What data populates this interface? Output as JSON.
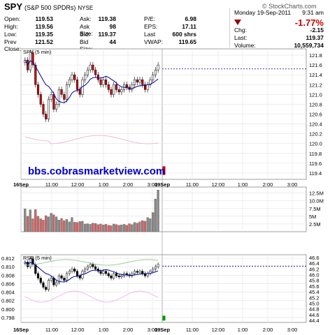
{
  "header": {
    "symbol": "SPY",
    "name": "(S&P 500 SPDRs)",
    "exchange": "NYSE",
    "brand": "© StockCharts.com",
    "date": "Monday 19-Sep-2011",
    "time": "9:31 am",
    "change_pct": "-1.77%",
    "quote_rows": [
      [
        {
          "label": "Open:",
          "value": "119.53"
        },
        {
          "label": "Ask:",
          "value": "119.38"
        },
        {
          "label": "P/E:",
          "value": "6.98"
        }
      ],
      [
        {
          "label": "High:",
          "value": "119.56"
        },
        {
          "label": "Ask Size:",
          "value": "98"
        },
        {
          "label": "EPS:",
          "value": "17.11"
        }
      ],
      [
        {
          "label": "Low:",
          "value": "119.35"
        },
        {
          "label": "Bid:",
          "value": "119.37"
        },
        {
          "label": "Last",
          "value": "600 shrs"
        }
      ],
      [
        {
          "label": "Prev Close:",
          "value": "121.52"
        },
        {
          "label": "Bid Size:",
          "value": "44"
        },
        {
          "label": "VWAP:",
          "value": "119.65"
        }
      ]
    ],
    "right_rows": [
      {
        "label": "Chg:",
        "value": "-2.15"
      },
      {
        "label": "Last:",
        "value": "119.37"
      },
      {
        "label": "Volume:",
        "value": "10,559,734"
      }
    ],
    "colors": {
      "down": "#cc0000",
      "up": "#000000",
      "accent": "#000099"
    }
  },
  "watermark": "bbs.cobrasmarketview.com",
  "chart_data": [
    {
      "type": "candlestick",
      "title": "SPY (5 min)",
      "y_ticks": [
        "121.8",
        "121.6",
        "121.4",
        "121.2",
        "121.0",
        "120.8",
        "120.6",
        "120.4",
        "120.2",
        "120.0",
        "119.8",
        "119.6",
        "119.4"
      ],
      "y_tick_values": [
        121.8,
        121.6,
        121.4,
        121.2,
        121.0,
        120.8,
        120.6,
        120.4,
        120.2,
        120.0,
        119.8,
        119.6,
        119.4
      ],
      "ylim": [
        119.3,
        121.9
      ],
      "x_ticks": [
        "16Sep",
        "11:00",
        "12:00",
        "1:00",
        "2:00",
        "3:00",
        "19Sep",
        "11:00",
        "12:00",
        "1:00",
        "2:00",
        "3:00"
      ],
      "prev_close": 121.52,
      "closes": [
        121.7,
        121.5,
        121.85,
        121.6,
        121.2,
        121.0,
        120.8,
        120.6,
        120.5,
        120.9,
        121.0,
        120.7,
        120.8,
        121.1,
        121.0,
        120.9,
        121.2,
        121.3,
        121.4,
        121.3,
        121.1,
        121.0,
        121.3,
        121.4,
        121.5,
        121.6,
        121.5,
        121.4,
        121.3,
        121.2,
        121.3,
        121.2,
        121.1,
        121.0,
        121.2,
        121.1,
        121.05,
        121.1,
        121.2,
        121.15,
        121.1,
        121.2,
        121.3,
        121.25,
        121.3,
        121.2,
        121.1,
        121.2,
        121.3,
        121.4,
        121.5,
        121.6
      ],
      "last_bar": {
        "open": 119.53,
        "high": 119.56,
        "low": 119.35,
        "close": 119.37
      }
    },
    {
      "type": "bar",
      "title": "Volume",
      "y_ticks": [
        "12.5M",
        "10.0M",
        "7.5M",
        "5M",
        "2.5M"
      ],
      "y_tick_values": [
        12.5,
        10.0,
        7.5,
        5,
        2.5
      ],
      "ylim": [
        0,
        14
      ],
      "values": [
        7.4,
        5.0,
        7.1,
        4.2,
        7.2,
        5.0,
        4.2,
        3.8,
        5.2,
        4.8,
        6.0,
        5.5,
        4.8,
        3.8,
        4.3,
        3.6,
        4.0,
        3.2,
        4.6,
        3.1,
        3.0,
        3.3,
        3.4,
        2.5,
        2.6,
        2.4,
        2.8,
        2.7,
        2.3,
        2.5,
        2.2,
        2.4,
        2.1,
        2.0,
        2.5,
        2.3,
        2.1,
        2.2,
        2.4,
        2.1,
        2.6,
        2.3,
        3.0,
        2.8,
        3.2,
        3.6,
        3.4,
        4.6,
        4.2,
        6.2,
        10.6,
        13.5
      ]
    },
    {
      "type": "line",
      "title": "RSP (5 min)",
      "y_ticks_left": [
        "0.812",
        "0.810",
        "0.808",
        "0.806",
        "0.804",
        "0.802",
        "0.800",
        "0.798"
      ],
      "y_tick_values_left": [
        0.812,
        0.81,
        0.808,
        0.806,
        0.804,
        0.802,
        0.8,
        0.798
      ],
      "y_ticks_right": [
        "46.6",
        "46.4",
        "46.2",
        "46.0",
        "45.8",
        "45.6",
        "45.4",
        "45.2",
        "45.0",
        "44.8",
        "44.6",
        "44.4"
      ],
      "y_tick_values_right": [
        46.6,
        46.4,
        46.2,
        46.0,
        45.8,
        45.6,
        45.4,
        45.2,
        45.0,
        44.8,
        44.6,
        44.4
      ],
      "ylim_left": [
        0.797,
        0.8125
      ],
      "ylim_right": [
        44.35,
        46.65
      ]
    }
  ]
}
